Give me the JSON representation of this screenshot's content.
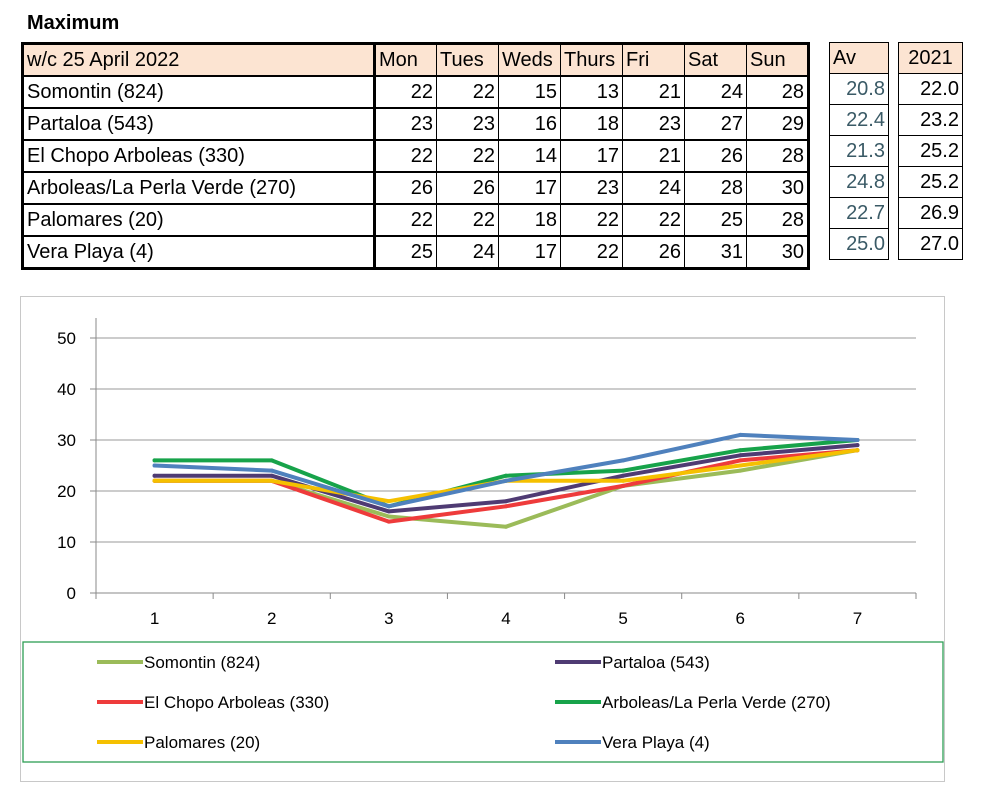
{
  "heading": "Maximum",
  "table": {
    "week_label": "w/c 25 April 2022",
    "days": [
      "Mon",
      "Tues",
      "Weds",
      "Thurs",
      "Fri",
      "Sat",
      "Sun"
    ],
    "av_header": "Av",
    "prev_header": "2021",
    "rows": [
      {
        "station": "Somontin (824)",
        "values": [
          "22",
          "22",
          "15",
          "13",
          "21",
          "24",
          "28"
        ],
        "av": "20.8",
        "prev": "22.0"
      },
      {
        "station": "Partaloa (543)",
        "values": [
          "23",
          "23",
          "16",
          "18",
          "23",
          "27",
          "29"
        ],
        "av": "22.4",
        "prev": "23.2"
      },
      {
        "station": "El Chopo  Arboleas (330)",
        "values": [
          "22",
          "22",
          "14",
          "17",
          "21",
          "26",
          "28"
        ],
        "av": "21.3",
        "prev": "25.2"
      },
      {
        "station": "Arboleas/La Perla Verde (270)",
        "values": [
          "26",
          "26",
          "17",
          "23",
          "24",
          "28",
          "30"
        ],
        "av": "24.8",
        "prev": "25.2"
      },
      {
        "station": "Palomares (20)",
        "values": [
          "22",
          "22",
          "18",
          "22",
          "22",
          "25",
          "28"
        ],
        "av": "22.7",
        "prev": "26.9"
      },
      {
        "station": "Vera Playa (4)",
        "values": [
          "25",
          "24",
          "17",
          "22",
          "26",
          "31",
          "30"
        ],
        "av": "25.0",
        "prev": "27.0"
      }
    ]
  },
  "chart_data": {
    "type": "line",
    "x": [
      1,
      2,
      3,
      4,
      5,
      6,
      7
    ],
    "x_tick_labels": [
      "1",
      "2",
      "3",
      "4",
      "5",
      "6",
      "7"
    ],
    "ylim": [
      0,
      50
    ],
    "y_ticks": [
      0,
      10,
      20,
      30,
      40,
      50
    ],
    "y_tick_labels": [
      "0",
      "10",
      "20",
      "30",
      "40",
      "50"
    ],
    "grid": true,
    "legend_position": "bottom",
    "series": [
      {
        "name": "Somontin (824)",
        "color": "#9bbb59",
        "values": [
          22,
          22,
          15,
          13,
          21,
          24,
          28
        ]
      },
      {
        "name": "Partaloa (543)",
        "color": "#4f3b73",
        "values": [
          23,
          23,
          16,
          18,
          23,
          27,
          29
        ]
      },
      {
        "name": "El Chopo  Arboleas (330)",
        "color": "#ee3b3b",
        "values": [
          22,
          22,
          14,
          17,
          21,
          26,
          28
        ]
      },
      {
        "name": "Arboleas/La Perla Verde (270)",
        "color": "#17a34a",
        "values": [
          26,
          26,
          17,
          23,
          24,
          28,
          30
        ]
      },
      {
        "name": "Palomares (20)",
        "color": "#f5c000",
        "values": [
          22,
          22,
          18,
          22,
          22,
          25,
          28
        ]
      },
      {
        "name": "Vera Playa (4)",
        "color": "#4f81bd",
        "values": [
          25,
          24,
          17,
          22,
          26,
          31,
          30
        ]
      }
    ]
  }
}
